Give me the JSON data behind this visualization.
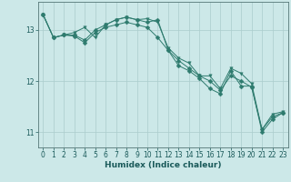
{
  "title": "",
  "xlabel": "Humidex (Indice chaleur)",
  "bg_color": "#cce8e8",
  "grid_color": "#aacccc",
  "line_color": "#2e7b6e",
  "xlim": [
    -0.5,
    23.5
  ],
  "ylim": [
    10.7,
    13.55
  ],
  "yticks": [
    11,
    12,
    13
  ],
  "xticks": [
    0,
    1,
    2,
    3,
    4,
    5,
    6,
    7,
    8,
    9,
    10,
    11,
    12,
    13,
    14,
    15,
    16,
    17,
    18,
    19,
    20,
    21,
    22,
    23
  ],
  "series": [
    [
      13.3,
      12.85,
      12.9,
      12.95,
      13.05,
      12.85,
      13.1,
      13.2,
      13.25,
      13.2,
      13.22,
      13.15,
      12.65,
      12.45,
      12.35,
      12.1,
      12.1,
      11.85,
      12.25,
      12.15,
      11.95,
      11.05,
      11.35,
      11.4
    ],
    [
      13.3,
      12.85,
      12.9,
      12.9,
      12.8,
      13.0,
      13.1,
      13.2,
      13.25,
      13.2,
      13.15,
      13.2,
      12.6,
      12.3,
      12.2,
      12.05,
      11.85,
      11.75,
      12.2,
      11.9,
      11.9,
      11.0,
      11.25,
      11.38
    ],
    [
      13.3,
      12.85,
      12.9,
      12.88,
      12.75,
      12.95,
      13.05,
      13.1,
      13.15,
      13.1,
      13.05,
      12.85,
      12.6,
      12.4,
      12.25,
      12.1,
      12.0,
      11.82,
      12.1,
      12.0,
      11.88,
      11.05,
      11.3,
      11.38
    ]
  ],
  "marker_sizes": [
    2.5,
    2.5,
    2.5
  ],
  "linewidth": 0.7,
  "tick_fontsize": 5.5,
  "xlabel_fontsize": 6.5
}
